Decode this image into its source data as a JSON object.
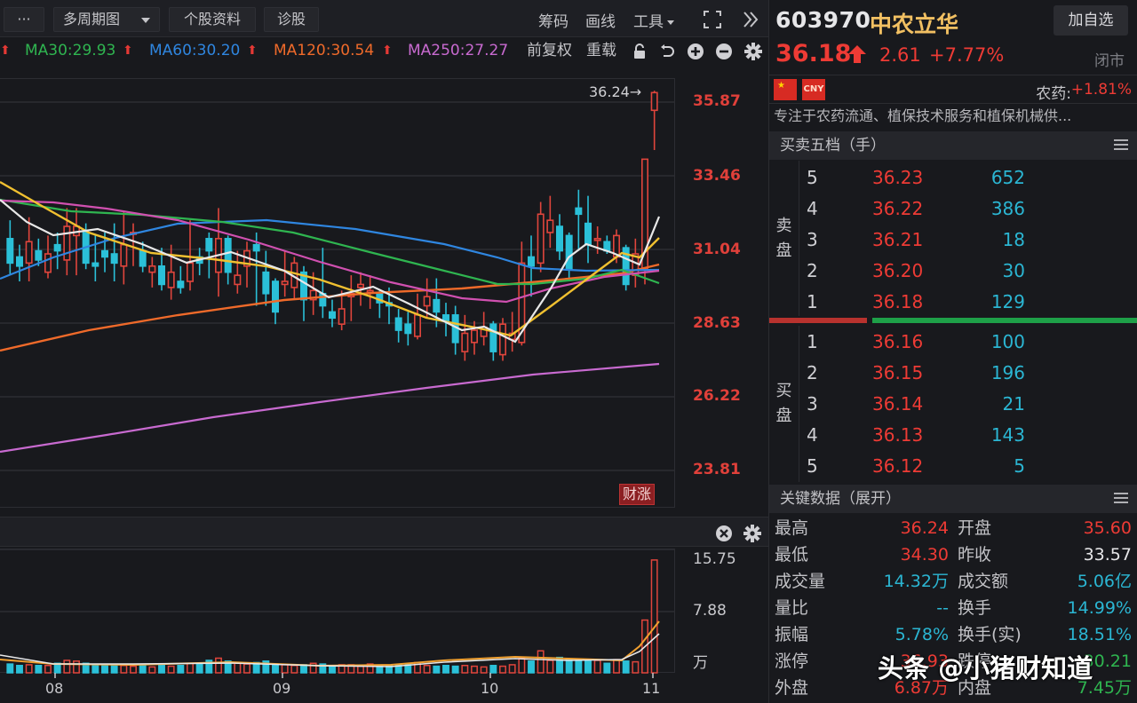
{
  "toolbar": {
    "more_label": "···",
    "multi_period_label": "多周期图",
    "stock_info_label": "个股资料",
    "diagnose_label": "诊股",
    "chips_label": "筹码",
    "draw_label": "画线",
    "tools_label": "工具",
    "fullscreen_icon": "fullscreen-icon",
    "collapse_icon": "double-chevron-right-icon"
  },
  "ma_legend": {
    "ma30": "MA30:29.93",
    "ma60": "MA60:30.20",
    "ma120": "MA120:30.54",
    "ma250": "MA250:27.27",
    "adjust_label": "前复权",
    "reload_label": "重载",
    "colors": {
      "ma5": "#e8e8e8",
      "ma10": "#f0c030",
      "ma20": "#d050b0",
      "ma30": "#2fb550",
      "ma60": "#2f86e0",
      "ma120": "#ef6a2a",
      "ma250": "#c86ad0"
    }
  },
  "price_axis": {
    "labels": [
      "35.87",
      "33.46",
      "31.04",
      "28.63",
      "26.22",
      "23.81"
    ],
    "high_marker": "36.24→",
    "badge": "财涨"
  },
  "volume_axis": {
    "labels": [
      "15.75",
      "7.88",
      "万"
    ]
  },
  "x_axis": {
    "labels": [
      "08",
      "09",
      "10",
      "11"
    ]
  },
  "quote": {
    "code": "603970",
    "name": "中农立华",
    "add_watchlist": "加自选",
    "price": "36.18",
    "change": "2.61",
    "change_pct": "+7.77%",
    "market_status": "闭市",
    "currency": "CNY",
    "industry_label": "农药:",
    "industry_pct": "+1.81%",
    "description": "专注于农药流通、植保技术服务和植保机械供..."
  },
  "order_book": {
    "title": "买卖五档（手）",
    "sell_label": "卖盘",
    "buy_label": "买盘",
    "asks": [
      {
        "level": "5",
        "price": "36.23",
        "volume": "652"
      },
      {
        "level": "4",
        "price": "36.22",
        "volume": "386"
      },
      {
        "level": "3",
        "price": "36.21",
        "volume": "18"
      },
      {
        "level": "2",
        "price": "36.20",
        "volume": "30"
      },
      {
        "level": "1",
        "price": "36.18",
        "volume": "129"
      }
    ],
    "bids": [
      {
        "level": "1",
        "price": "36.16",
        "volume": "100"
      },
      {
        "level": "2",
        "price": "36.15",
        "volume": "196"
      },
      {
        "level": "3",
        "price": "36.14",
        "volume": "21"
      },
      {
        "level": "4",
        "price": "36.13",
        "volume": "143"
      },
      {
        "level": "5",
        "price": "36.12",
        "volume": "5"
      }
    ]
  },
  "key_data": {
    "title": "关键数据（展开）",
    "rows": [
      {
        "l": "最高",
        "lv": "36.24",
        "lc": "#ee3b35",
        "r": "开盘",
        "rv": "35.60",
        "rc": "#ee3b35"
      },
      {
        "l": "最低",
        "lv": "34.30",
        "lc": "#ee3b35",
        "r": "昨收",
        "rv": "33.57",
        "rc": "#e6e6e8"
      },
      {
        "l": "成交量",
        "lv": "14.32万",
        "lc": "#2bb6d3",
        "r": "成交额",
        "rv": "5.06亿",
        "rc": "#2bb6d3"
      },
      {
        "l": "量比",
        "lv": "--",
        "lc": "#2bb6d3",
        "r": "换手",
        "rv": "14.99%",
        "rc": "#2bb6d3"
      },
      {
        "l": "振幅",
        "lv": "5.78%",
        "lc": "#2bb6d3",
        "r": "换手(实)",
        "rv": "18.51%",
        "rc": "#2bb6d3"
      },
      {
        "l": "涨停",
        "lv": "36.93",
        "lc": "#ee3b35",
        "r": "跌停",
        "rv": "30.21",
        "rc": "#2fb550"
      },
      {
        "l": "外盘",
        "lv": "6.87万",
        "lc": "#ee3b35",
        "r": "内盘",
        "rv": "7.45万",
        "rc": "#2fb550"
      }
    ]
  },
  "watermark": "头条 @小猪财知道",
  "colors": {
    "up": "#e0453c",
    "down": "#2bc0d8",
    "grid": "#2c2d33",
    "bg": "#18191d"
  }
}
